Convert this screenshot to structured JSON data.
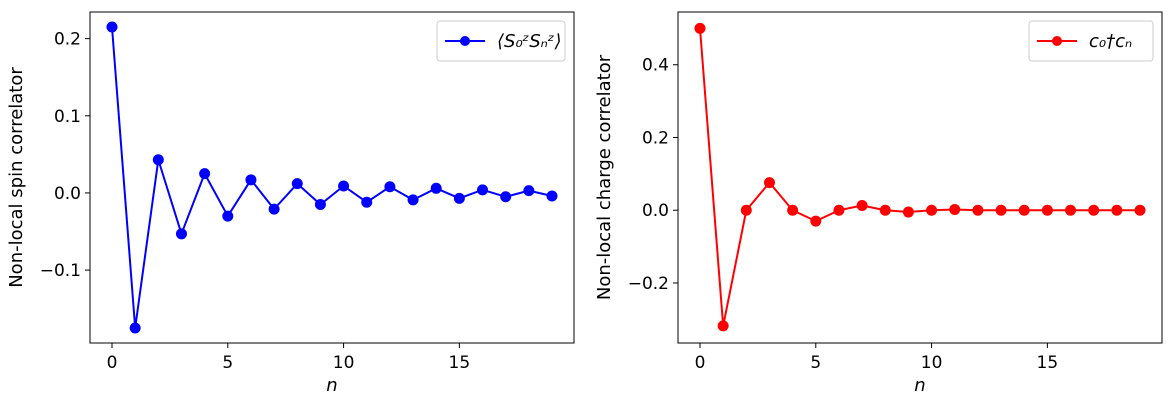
{
  "chart_data": [
    {
      "type": "line",
      "xlabel": "n",
      "ylabel": "Non-local spin correlator",
      "xlim": [
        -0.95,
        19.95
      ],
      "ylim": [
        -0.1945,
        0.2345
      ],
      "xticks": [
        0,
        5,
        10,
        15
      ],
      "xtick_labels": [
        "0",
        "5",
        "10",
        "15"
      ],
      "yticks": [
        -0.1,
        0.0,
        0.1,
        0.2
      ],
      "ytick_labels": [
        "−0.1",
        "0.0",
        "0.1",
        "0.2"
      ],
      "grid": false,
      "legend_position": "top-right",
      "series": [
        {
          "name": "⟨S₀ᶻSₙᶻ⟩",
          "color": "#0000ff",
          "marker": "circle",
          "x": [
            0,
            1,
            2,
            3,
            4,
            5,
            6,
            7,
            8,
            9,
            10,
            11,
            12,
            13,
            14,
            15,
            16,
            17,
            18,
            19
          ],
          "y": [
            0.215,
            -0.175,
            0.043,
            -0.053,
            0.025,
            -0.03,
            0.017,
            -0.021,
            0.012,
            -0.015,
            0.009,
            -0.012,
            0.008,
            -0.009,
            0.006,
            -0.007,
            0.004,
            -0.005,
            0.003,
            -0.004
          ]
        }
      ]
    },
    {
      "type": "line",
      "xlabel": "n",
      "ylabel": "Non-local charge correlator",
      "xlim": [
        -0.95,
        19.95
      ],
      "ylim": [
        -0.365,
        0.545
      ],
      "xticks": [
        0,
        5,
        10,
        15
      ],
      "xtick_labels": [
        "0",
        "5",
        "10",
        "15"
      ],
      "yticks": [
        -0.2,
        0.0,
        0.2,
        0.4
      ],
      "ytick_labels": [
        "−0.2",
        "0.0",
        "0.2",
        "0.4"
      ],
      "grid": false,
      "legend_position": "top-right",
      "series": [
        {
          "name": "c₀†cₙ",
          "color": "#ff0000",
          "marker": "circle",
          "x": [
            0,
            1,
            2,
            3,
            4,
            5,
            6,
            7,
            8,
            9,
            10,
            11,
            12,
            13,
            14,
            15,
            16,
            17,
            18,
            19
          ],
          "y": [
            0.5,
            -0.318,
            0.0,
            0.076,
            0.0,
            -0.03,
            0.0,
            0.013,
            0.0,
            -0.005,
            0.0,
            0.002,
            0.0,
            0.0,
            0.0,
            0.0,
            0.0,
            0.0,
            0.0,
            0.0
          ]
        }
      ]
    }
  ]
}
